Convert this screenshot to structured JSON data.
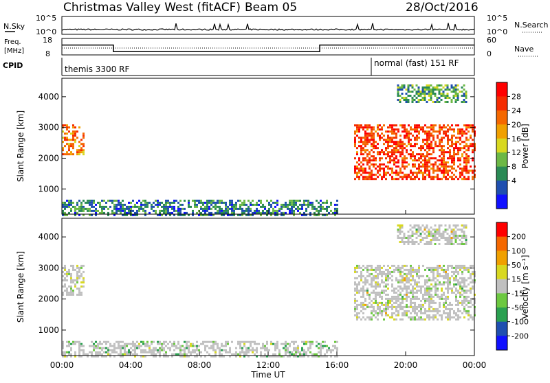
{
  "header": {
    "station": "Christmas Valley West (fitACF)",
    "beam": "Beam 05",
    "date": "28/Oct/2016"
  },
  "sky_panel": {
    "left_label": "N.Sky",
    "right_label": "N.Search",
    "left_ticks": [
      "10^5",
      "10^0"
    ],
    "right_ticks": [
      "10^5",
      "10^0"
    ]
  },
  "freq_panel": {
    "left_label_1": "Freq.",
    "left_label_2": "[MHz]",
    "right_label": "Nave",
    "left_ticks": [
      "18",
      "8"
    ],
    "right_ticks": [
      "60",
      "0"
    ],
    "freq_steps": [
      {
        "t0": 0.0,
        "t1": 3.0,
        "v": 14
      },
      {
        "t0": 3.0,
        "t1": 15.0,
        "v": 10
      },
      {
        "t0": 15.0,
        "t1": 24.0,
        "v": 14
      }
    ]
  },
  "cpid_panel": {
    "label": "CPID",
    "mode1": "themis 3300 RF",
    "mode2": "normal (fast) 151 RF",
    "switch_time": 18.0
  },
  "power_panel": {
    "ylabel": "Slant Range [km]",
    "yticks": [
      "4000",
      "3000",
      "2000",
      "1000"
    ],
    "colorbar_label": "Power [dB]",
    "colorbar_ticks": [
      "28",
      "24",
      "20",
      "16",
      "12",
      "8",
      "4"
    ],
    "colors": [
      "#1010ff",
      "#1f4fb0",
      "#2a8a55",
      "#6cb845",
      "#d8d820",
      "#f0a000",
      "#f56800",
      "#f52c00",
      "#ff0000"
    ]
  },
  "velocity_panel": {
    "ylabel": "Slant Range [km]",
    "yticks": [
      "4000",
      "3000",
      "2000",
      "1000"
    ],
    "colorbar_label": "Velocity [m s⁻¹]",
    "colorbar_ticks": [
      "200",
      "100",
      "50",
      "15",
      "-15",
      "-50",
      "-100",
      "-200"
    ],
    "colors": [
      "#1010ff",
      "#1f4fb0",
      "#2aa050",
      "#6cc840",
      "#c0c0c0",
      "#d8d820",
      "#f0a000",
      "#f56800",
      "#ff0000"
    ]
  },
  "x_axis": {
    "ticks": [
      "00:00",
      "04:00",
      "08:00",
      "12:00",
      "16:00",
      "20:00",
      "00:00"
    ],
    "label": "Time UT"
  },
  "chart_data": {
    "type": "heatmap",
    "title": "Christmas Valley West (fitACF)  Beam 05  28/Oct/2016",
    "xlabel": "Time UT",
    "ylabel": "Slant Range [km]",
    "xlim": [
      0,
      24
    ],
    "ylim": [
      180,
      4600
    ],
    "panels": [
      {
        "name": "Power [dB]",
        "range": [
          0,
          32
        ]
      },
      {
        "name": "Velocity [m s⁻¹]",
        "range": [
          -250,
          250
        ]
      }
    ],
    "echo_regions": [
      {
        "t0": 0.0,
        "t1": 1.3,
        "r0": 2150,
        "r1": 3100,
        "power": 22,
        "velocity": 0
      },
      {
        "t0": 17.0,
        "t1": 24.0,
        "r0": 1350,
        "r1": 3100,
        "power": 26,
        "velocity": 0
      },
      {
        "t0": 0.0,
        "t1": 16.0,
        "r0": 180,
        "r1": 650,
        "power": 8,
        "velocity": -40
      },
      {
        "t0": 19.5,
        "t1": 23.5,
        "r0": 3800,
        "r1": 4400,
        "power": 10,
        "velocity": 0
      }
    ]
  }
}
